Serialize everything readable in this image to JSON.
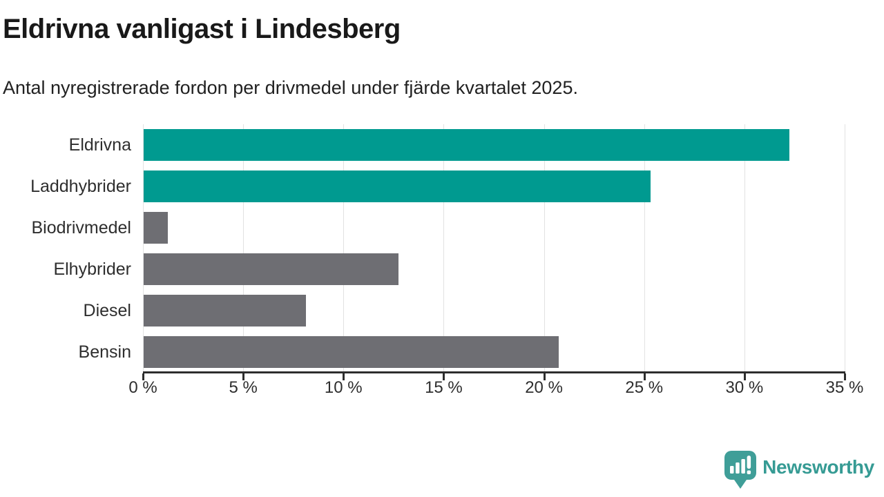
{
  "chart_data": {
    "type": "bar",
    "orientation": "horizontal",
    "title": "Eldrivna vanligast i Lindesberg",
    "subtitle": "Antal nyregistrerade fordon per drivmedel under fjärde kvartalet 2025.",
    "categories": [
      "Eldrivna",
      "Laddhybrider",
      "Biodrivmedel",
      "Elhybrider",
      "Diesel",
      "Bensin"
    ],
    "values": [
      32.2,
      25.3,
      1.2,
      12.7,
      8.1,
      20.7
    ],
    "unit": "%",
    "bar_colors": [
      "#009A90",
      "#009A90",
      "#6E6E73",
      "#6E6E73",
      "#6E6E73",
      "#6E6E73"
    ],
    "highlight_color": "#009A90",
    "default_color": "#6E6E73",
    "xlim": [
      0,
      35
    ],
    "x_ticks": [
      0,
      5,
      10,
      15,
      20,
      25,
      30,
      35
    ],
    "x_tick_labels": [
      "0 %",
      "5 %",
      "10 %",
      "15 %",
      "20 %",
      "25 %",
      "30 %",
      "35 %"
    ],
    "xlabel": "",
    "ylabel": "",
    "grid": true,
    "legend": false
  },
  "footer": {
    "brand": "Newsworthy",
    "brand_color": "#369B94",
    "logo_color": "#3F9E98"
  }
}
